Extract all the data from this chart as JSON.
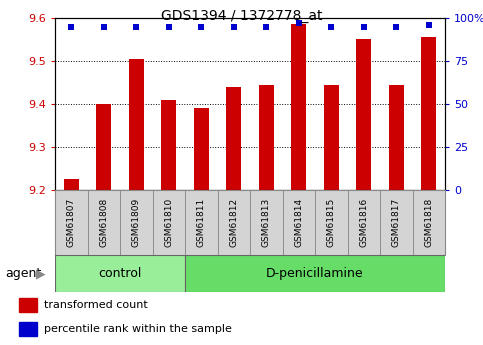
{
  "title": "GDS1394 / 1372778_at",
  "samples": [
    "GSM61807",
    "GSM61808",
    "GSM61809",
    "GSM61810",
    "GSM61811",
    "GSM61812",
    "GSM61813",
    "GSM61814",
    "GSM61815",
    "GSM61816",
    "GSM61817",
    "GSM61818"
  ],
  "transformed_counts": [
    9.225,
    9.4,
    9.505,
    9.41,
    9.39,
    9.44,
    9.445,
    9.585,
    9.445,
    9.55,
    9.445,
    9.555
  ],
  "percentile_ranks": [
    95,
    95,
    95,
    95,
    95,
    95,
    95,
    97,
    95,
    95,
    95,
    96
  ],
  "ylim_left": [
    9.2,
    9.6
  ],
  "ylim_right": [
    0,
    100
  ],
  "yticks_left": [
    9.2,
    9.3,
    9.4,
    9.5,
    9.6
  ],
  "yticks_right": [
    0,
    25,
    50,
    75,
    100
  ],
  "ytick_labels_right": [
    "0",
    "25",
    "50",
    "75",
    "100%"
  ],
  "bar_color": "#cc0000",
  "dot_color": "#0000cc",
  "baseline": 9.2,
  "n_control": 4,
  "n_treatment": 8,
  "control_label": "control",
  "treatment_label": "D-penicillamine",
  "agent_label": "agent",
  "legend_bar_label": "transformed count",
  "legend_dot_label": "percentile rank within the sample",
  "control_color": "#99ee99",
  "treatment_color": "#66dd66",
  "tick_label_bg": "#d4d4d4",
  "plot_bg": "#ffffff"
}
